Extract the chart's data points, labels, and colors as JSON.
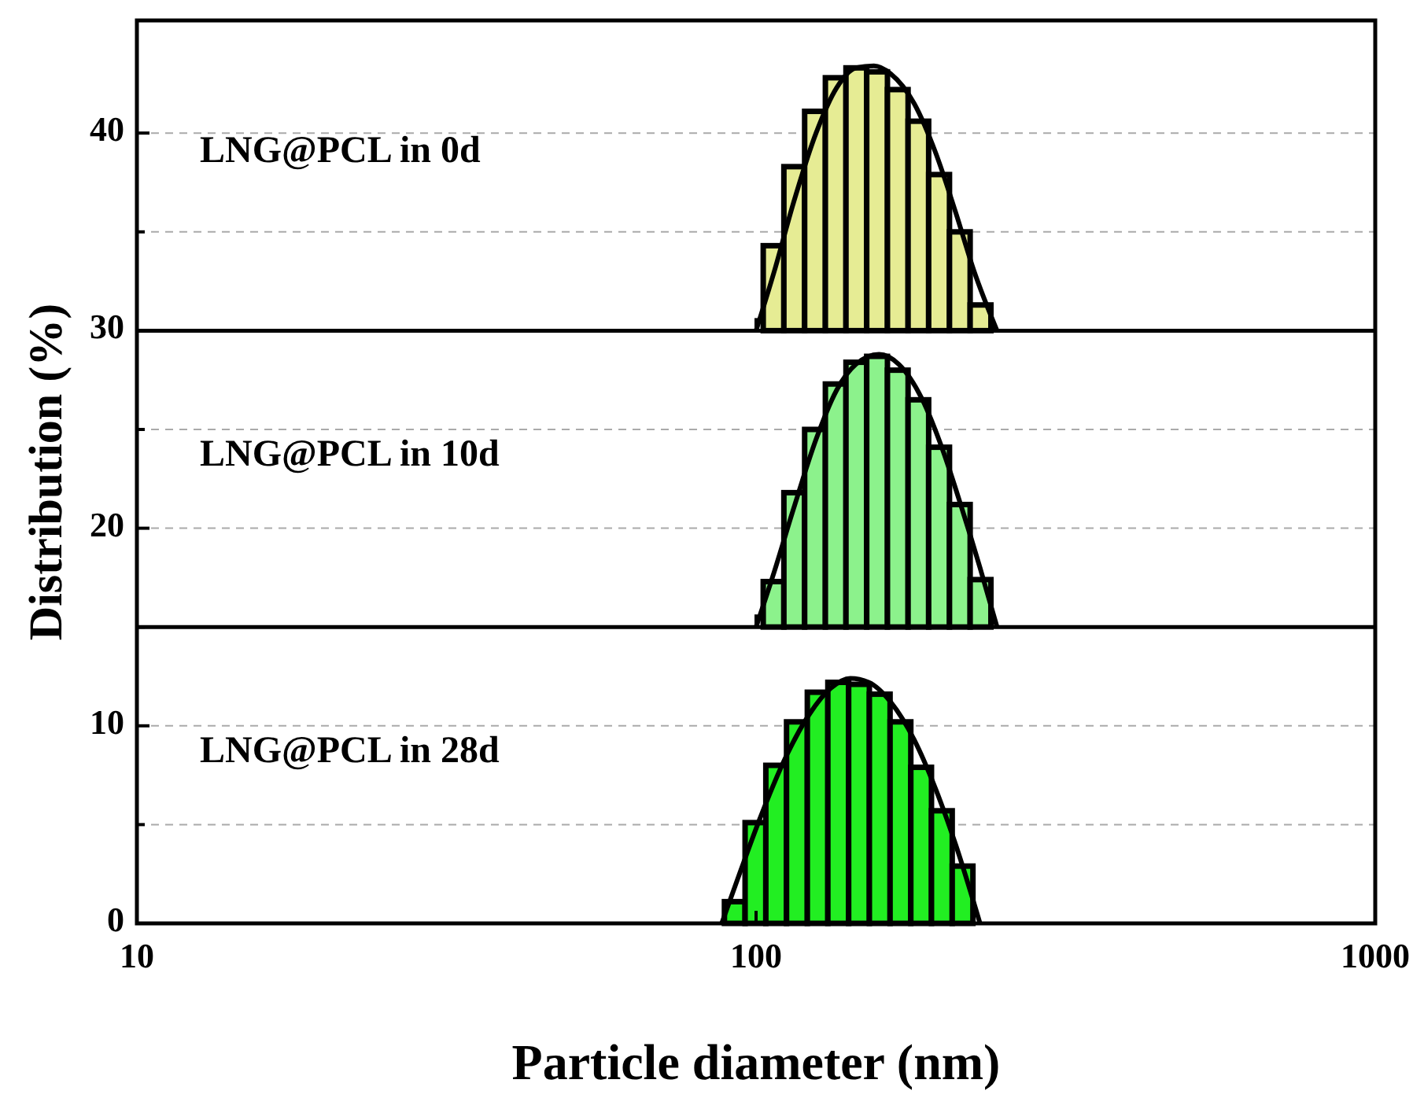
{
  "chart_data": {
    "type": "histogram",
    "xlabel": "Particle diameter (nm)",
    "ylabel": "Distribution (%)",
    "log": "x",
    "xlim": [
      10,
      1000
    ],
    "xticks": [
      10,
      100,
      1000
    ],
    "ylim": [
      0,
      45.7
    ],
    "yticks": [
      0,
      {
        "value": 5,
        "label": null
      },
      10,
      {
        "value": 15,
        "label": null
      },
      20,
      {
        "value": 25,
        "label": null
      },
      30,
      {
        "value": 35,
        "label": null
      },
      40
    ],
    "grid": "y",
    "annotations": [
      "LNG@PCL in 0d",
      "LNG@PCL in 10d",
      "LNG@PCL in 28d"
    ],
    "series": [
      {
        "color": "#e6ec94",
        "bins": [
          102.7,
          110.9,
          119.8,
          129.4,
          139.7,
          150.9,
          163,
          176,
          190,
          205.3,
          221.7,
          239.5
        ],
        "values": [
          4.3,
          8.3,
          11.1,
          12.8,
          13.3,
          13.1,
          12.2,
          10.6,
          7.9,
          5.0,
          1.3
        ],
        "base": [
          30,
          30,
          30,
          30,
          30,
          30,
          30,
          30,
          30,
          30,
          30
        ]
      },
      {
        "color": "#8cf28c",
        "bins": [
          102.7,
          110.9,
          119.8,
          129.4,
          139.7,
          150.9,
          163,
          176,
          190,
          205.3,
          221.7,
          239.5
        ],
        "values": [
          2.3,
          6.8,
          10.0,
          12.3,
          13.4,
          13.7,
          13.0,
          11.5,
          9.1,
          6.2,
          2.4
        ],
        "base": [
          15,
          15,
          15,
          15,
          15,
          15,
          15,
          15,
          15,
          15,
          15
        ]
      },
      {
        "color": "#22ee22",
        "bins": [
          88.9,
          96,
          103.7,
          112,
          121,
          130.6,
          141.1,
          152.4,
          164.6,
          177.8,
          192,
          207.4,
          224
        ],
        "values": [
          1.1,
          5.1,
          8.0,
          10.2,
          11.7,
          12.2,
          12.1,
          11.6,
          10.2,
          7.9,
          5.7,
          2.9
        ],
        "base": [
          0,
          0,
          0,
          0,
          0,
          0,
          0,
          0,
          0,
          0,
          0,
          0
        ]
      },
      {
        "type": "line",
        "color": "#000000",
        "x": [
          100,
          107,
          115,
          125,
          135,
          145,
          155,
          165,
          180,
          195,
          210,
          225,
          245
        ],
        "values": [
          30,
          33,
          36.5,
          40,
          42.3,
          43.3,
          43.4,
          43,
          41.5,
          39,
          36,
          33,
          30
        ]
      },
      {
        "type": "line",
        "color": "#000000",
        "x": [
          100,
          107,
          115,
          125,
          135,
          145,
          158,
          170,
          185,
          200,
          215,
          230,
          245
        ],
        "values": [
          15,
          17.8,
          21,
          24.5,
          27,
          28.3,
          28.8,
          28.3,
          26.6,
          24,
          21,
          18,
          15
        ]
      },
      {
        "type": "line",
        "color": "#000000",
        "x": [
          88,
          94,
          102,
          112,
          122,
          132,
          142,
          152,
          165,
          180,
          195,
          210,
          230
        ],
        "values": [
          0,
          2.5,
          5.5,
          8.5,
          10.6,
          11.9,
          12.4,
          12.2,
          11.2,
          9.3,
          6.8,
          4,
          0
        ]
      }
    ]
  }
}
